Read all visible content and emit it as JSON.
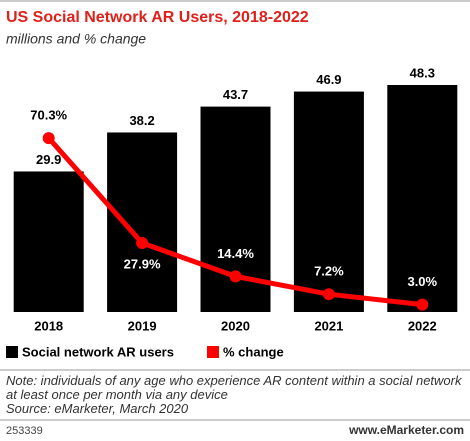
{
  "chart_data": {
    "type": "bar-line",
    "title": "US Social Network AR Users, 2018-2022",
    "subtitle": "millions and % change",
    "categories": [
      "2018",
      "2019",
      "2020",
      "2021",
      "2022"
    ],
    "series": [
      {
        "name": "Social network AR users",
        "color": "#000000",
        "type": "bar",
        "values": [
          29.9,
          38.2,
          43.7,
          46.9,
          48.3
        ]
      },
      {
        "name": "% change",
        "color": "#ff0000",
        "type": "line",
        "axis": "y2",
        "values": [
          70.3,
          27.9,
          14.4,
          7.2,
          3.0
        ],
        "value_labels": [
          "70.3%",
          "27.9%",
          "14.4%",
          "7.2%",
          "3.0%"
        ]
      }
    ],
    "ylim": [
      0,
      50
    ],
    "y2lim": [
      0,
      95
    ],
    "note": "Note: individuals of any age who experience AR content within a social network at least once per month via any device",
    "source": "Source: eMarketer, March 2020",
    "chart_id": "253339",
    "website": "www.eMarketer.com"
  }
}
